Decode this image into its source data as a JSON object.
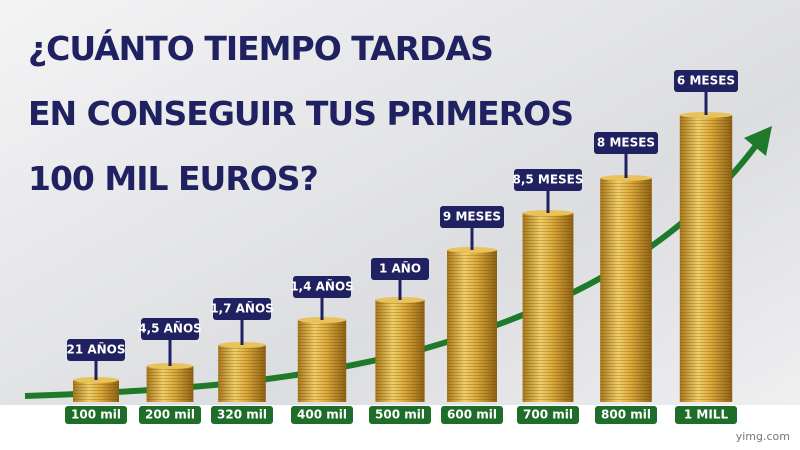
{
  "title": {
    "lines": [
      "¿CUÁNTO TIEMPO TARDAS",
      "EN CONSEGUIR TUS PRIMEROS",
      "100 MIL EUROS?"
    ]
  },
  "stacks": [
    {
      "amount": "100 mil",
      "time": "21 AÑOS"
    },
    {
      "amount": "200 mil",
      "time": "4,5 AÑOS"
    },
    {
      "amount": "320 mil",
      "time": "1,7 AÑOS"
    },
    {
      "amount": "400 mil",
      "time": "1,4 AÑOS"
    },
    {
      "amount": "500 mil",
      "time": "1 AÑO"
    },
    {
      "amount": "600 mil",
      "time": "9 MESES"
    },
    {
      "amount": "700 mil",
      "time": "8,5 MESES"
    },
    {
      "amount": "800 mil",
      "time": "8 MESES"
    },
    {
      "amount": "1 MILL",
      "time": "6 MESES"
    }
  ],
  "watermark": "yimg.com"
}
